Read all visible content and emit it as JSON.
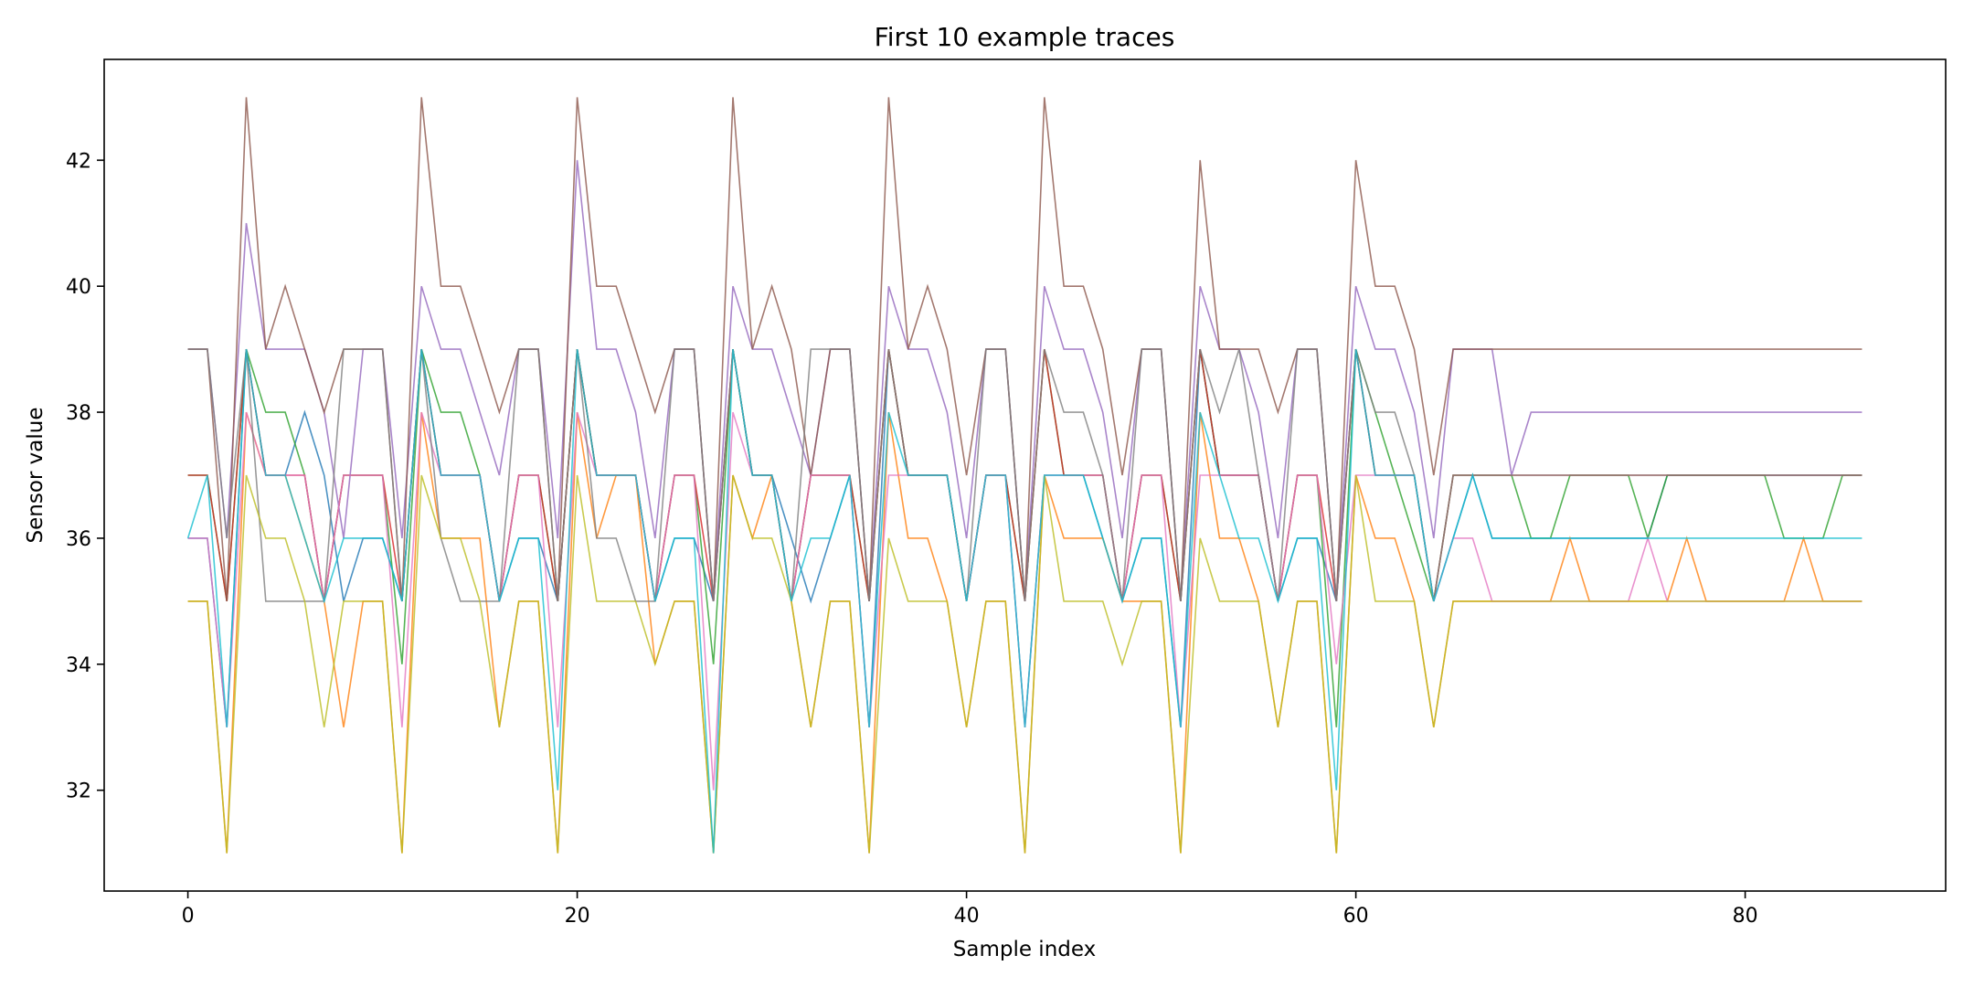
{
  "chart_data": {
    "type": "line",
    "title": "First 10 example traces",
    "xlabel": "Sample index",
    "ylabel": "Sensor value",
    "xlim": [
      -4.3,
      90.3
    ],
    "ylim": [
      30.4,
      43.6
    ],
    "xticks": [
      0,
      20,
      40,
      60,
      80
    ],
    "yticks": [
      32,
      34,
      36,
      38,
      40,
      42
    ],
    "grid": false,
    "series": [
      {
        "color": "#1f77b4",
        "values": [
          36,
          36,
          33,
          39,
          37,
          37,
          38,
          37,
          35,
          36,
          36,
          35,
          39,
          37,
          37,
          37,
          35,
          36,
          36,
          35,
          39,
          37,
          37,
          37,
          35,
          36,
          36,
          35,
          39,
          37,
          37,
          36,
          35,
          36,
          37,
          33,
          39,
          37,
          37,
          37,
          35,
          37,
          37,
          33,
          37,
          37,
          37,
          36,
          35,
          36,
          36,
          33,
          39,
          37,
          37,
          37,
          35,
          36,
          36,
          35,
          39,
          37,
          37,
          37,
          35,
          36,
          37,
          36,
          36,
          36,
          36,
          36,
          36,
          36,
          36,
          36,
          37,
          37,
          37,
          37,
          37,
          37,
          37,
          37,
          37,
          37,
          37
        ]
      },
      {
        "color": "#ff7f0e",
        "values": [
          35,
          35,
          31,
          38,
          37,
          37,
          36,
          35,
          33,
          35,
          35,
          31,
          38,
          36,
          36,
          36,
          33,
          35,
          35,
          31,
          38,
          36,
          37,
          37,
          34,
          35,
          35,
          31,
          37,
          36,
          37,
          35,
          33,
          35,
          35,
          31,
          38,
          36,
          36,
          35,
          33,
          35,
          35,
          31,
          37,
          36,
          36,
          36,
          35,
          35,
          35,
          31,
          38,
          36,
          36,
          35,
          33,
          35,
          35,
          31,
          37,
          36,
          36,
          35,
          33,
          35,
          35,
          35,
          35,
          35,
          35,
          36,
          35,
          35,
          35,
          35,
          35,
          36,
          35,
          35,
          35,
          35,
          35,
          36,
          35,
          35,
          35
        ]
      },
      {
        "color": "#2ca02c",
        "values": [
          37,
          37,
          35,
          39,
          38,
          38,
          37,
          35,
          37,
          37,
          37,
          34,
          39,
          38,
          38,
          37,
          35,
          37,
          37,
          35,
          39,
          37,
          37,
          37,
          35,
          37,
          37,
          34,
          39,
          37,
          37,
          35,
          37,
          37,
          37,
          35,
          39,
          37,
          37,
          37,
          35,
          37,
          37,
          35,
          39,
          37,
          37,
          37,
          35,
          37,
          37,
          35,
          39,
          37,
          37,
          37,
          35,
          37,
          37,
          33,
          39,
          38,
          37,
          36,
          35,
          37,
          37,
          37,
          37,
          36,
          36,
          37,
          37,
          37,
          37,
          36,
          37,
          37,
          37,
          37,
          37,
          37,
          36,
          36,
          36,
          37,
          37
        ]
      },
      {
        "color": "#d62728",
        "values": [
          37,
          37,
          35,
          39,
          37,
          37,
          37,
          35,
          37,
          37,
          37,
          35,
          39,
          37,
          37,
          37,
          35,
          37,
          37,
          35,
          39,
          37,
          37,
          37,
          35,
          37,
          37,
          35,
          39,
          37,
          37,
          35,
          37,
          37,
          37,
          35,
          39,
          37,
          37,
          37,
          35,
          37,
          37,
          35,
          39,
          37,
          37,
          37,
          35,
          37,
          37,
          35,
          39,
          37,
          37,
          37,
          35,
          37,
          37,
          35,
          39,
          37,
          37,
          37,
          35,
          37,
          37,
          37,
          37,
          37,
          37,
          37,
          37,
          37,
          37,
          37,
          37,
          37,
          37,
          37,
          37,
          37,
          37,
          37,
          37,
          37,
          37
        ]
      },
      {
        "color": "#9467bd",
        "values": [
          39,
          39,
          36,
          41,
          39,
          39,
          39,
          38,
          36,
          39,
          39,
          36,
          40,
          39,
          39,
          38,
          37,
          39,
          39,
          36,
          42,
          39,
          39,
          38,
          36,
          39,
          39,
          35,
          40,
          39,
          39,
          38,
          37,
          39,
          39,
          35,
          40,
          39,
          39,
          38,
          36,
          39,
          39,
          35,
          40,
          39,
          39,
          38,
          36,
          39,
          39,
          35,
          40,
          39,
          39,
          38,
          36,
          39,
          39,
          35,
          40,
          39,
          39,
          38,
          36,
          39,
          39,
          39,
          37,
          38,
          38,
          38,
          38,
          38,
          38,
          38,
          38,
          38,
          38,
          38,
          38,
          38,
          38,
          38,
          38,
          38,
          38
        ]
      },
      {
        "color": "#8c564b",
        "values": [
          39,
          39,
          35,
          43,
          39,
          40,
          39,
          38,
          39,
          39,
          39,
          35,
          43,
          40,
          40,
          39,
          38,
          39,
          39,
          35,
          43,
          40,
          40,
          39,
          38,
          39,
          39,
          35,
          43,
          39,
          40,
          39,
          37,
          39,
          39,
          35,
          43,
          39,
          40,
          39,
          37,
          39,
          39,
          35,
          43,
          40,
          40,
          39,
          37,
          39,
          39,
          35,
          42,
          39,
          39,
          39,
          38,
          39,
          39,
          35,
          42,
          40,
          40,
          39,
          37,
          39,
          39,
          39,
          39,
          39,
          39,
          39,
          39,
          39,
          39,
          39,
          39,
          39,
          39,
          39,
          39,
          39,
          39,
          39,
          39,
          39,
          39
        ]
      },
      {
        "color": "#e377c2",
        "values": [
          36,
          36,
          33,
          38,
          37,
          37,
          37,
          35,
          37,
          37,
          37,
          33,
          38,
          37,
          37,
          37,
          35,
          37,
          37,
          33,
          38,
          37,
          37,
          37,
          35,
          37,
          37,
          32,
          38,
          37,
          37,
          35,
          37,
          37,
          37,
          33,
          37,
          37,
          37,
          37,
          35,
          37,
          37,
          33,
          37,
          37,
          37,
          37,
          35,
          37,
          37,
          33,
          37,
          37,
          37,
          37,
          35,
          37,
          37,
          34,
          37,
          37,
          37,
          37,
          35,
          36,
          36,
          35,
          35,
          35,
          35,
          35,
          35,
          35,
          35,
          36,
          35,
          35,
          35,
          35,
          35,
          35,
          35,
          35,
          35,
          35,
          35
        ]
      },
      {
        "color": "#7f7f7f",
        "values": [
          39,
          39,
          36,
          39,
          35,
          35,
          35,
          35,
          39,
          39,
          39,
          35,
          39,
          36,
          35,
          35,
          35,
          39,
          39,
          35,
          39,
          36,
          36,
          35,
          35,
          39,
          39,
          35,
          39,
          37,
          37,
          35,
          39,
          39,
          39,
          35,
          39,
          37,
          37,
          37,
          35,
          39,
          39,
          35,
          39,
          38,
          38,
          37,
          35,
          39,
          39,
          35,
          39,
          38,
          39,
          37,
          35,
          39,
          39,
          35,
          39,
          38,
          38,
          37,
          35,
          37,
          37,
          37,
          37,
          37,
          37,
          37,
          37,
          37,
          37,
          37,
          37,
          37,
          37,
          37,
          37,
          37,
          37,
          37,
          37,
          37,
          37
        ]
      },
      {
        "color": "#bcbd22",
        "values": [
          35,
          35,
          31,
          37,
          36,
          36,
          35,
          33,
          35,
          35,
          35,
          31,
          37,
          36,
          36,
          35,
          33,
          35,
          35,
          31,
          37,
          35,
          35,
          35,
          34,
          35,
          35,
          31,
          37,
          36,
          36,
          35,
          33,
          35,
          35,
          31,
          36,
          35,
          35,
          35,
          33,
          35,
          35,
          31,
          37,
          35,
          35,
          35,
          34,
          35,
          35,
          31,
          36,
          35,
          35,
          35,
          33,
          35,
          35,
          31,
          37,
          35,
          35,
          35,
          33,
          35,
          35,
          35,
          35,
          35,
          35,
          35,
          35,
          35,
          35,
          35,
          35,
          35,
          35,
          35,
          35,
          35,
          35,
          35,
          35,
          35,
          35
        ]
      },
      {
        "color": "#17becf",
        "values": [
          36,
          37,
          33,
          39,
          37,
          37,
          36,
          35,
          36,
          36,
          36,
          35,
          39,
          37,
          37,
          37,
          35,
          36,
          36,
          32,
          39,
          37,
          37,
          37,
          35,
          36,
          36,
          31,
          39,
          37,
          37,
          35,
          36,
          36,
          37,
          33,
          38,
          37,
          37,
          37,
          35,
          37,
          37,
          33,
          37,
          37,
          37,
          36,
          35,
          36,
          36,
          33,
          38,
          37,
          36,
          36,
          35,
          36,
          36,
          32,
          39,
          37,
          37,
          37,
          35,
          36,
          37,
          36,
          36,
          36,
          36,
          36,
          36,
          36,
          36,
          36,
          36,
          36,
          36,
          36,
          36,
          36,
          36,
          36,
          36,
          36,
          36
        ]
      }
    ]
  }
}
